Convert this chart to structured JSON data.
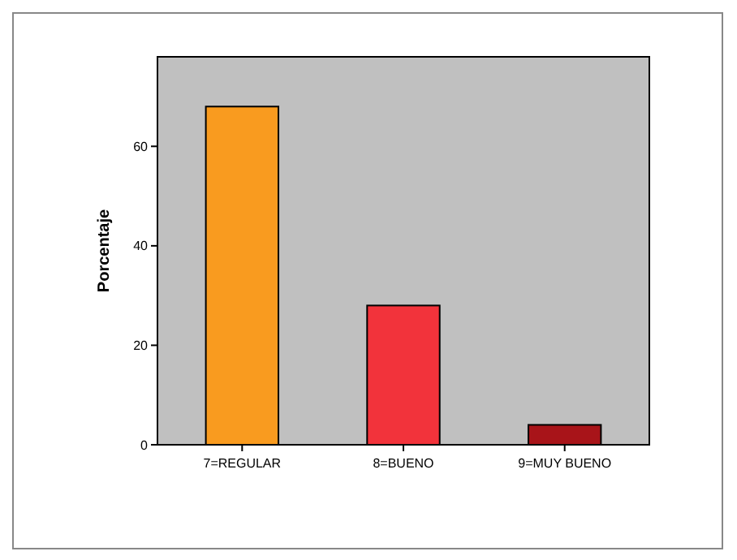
{
  "chart_data": {
    "type": "bar",
    "ylabel": "Porcentaje",
    "categories": [
      "7=REGULAR",
      "8=BUENO",
      "9=MUY BUENO"
    ],
    "values": [
      68,
      28,
      4
    ],
    "colors": [
      "#f99b1f",
      "#f2333b",
      "#a81419"
    ],
    "ylim": [
      0,
      78
    ],
    "yticks": [
      0,
      20,
      40,
      60
    ],
    "grid": false
  }
}
